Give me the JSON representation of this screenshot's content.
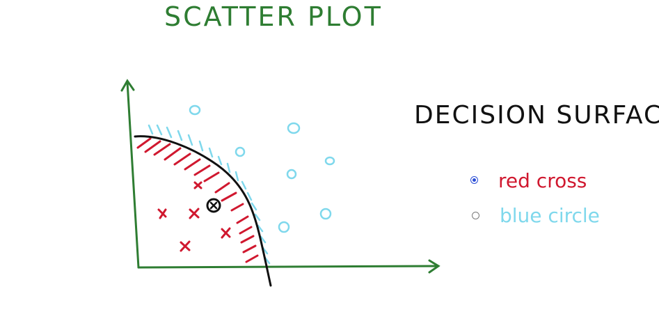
{
  "title": "SCATTER PLOT",
  "heading": "DECISION SURFACE",
  "options": [
    {
      "label": "red cross",
      "selected": true
    },
    {
      "label": "blue circle",
      "selected": false
    }
  ],
  "colors": {
    "title": "#2e7d32",
    "axes": "#2e7d32",
    "red": "#d0182f",
    "blue": "#7fd8ec",
    "boundary": "#111111",
    "radio_selected": "#2a4dd6"
  }
}
